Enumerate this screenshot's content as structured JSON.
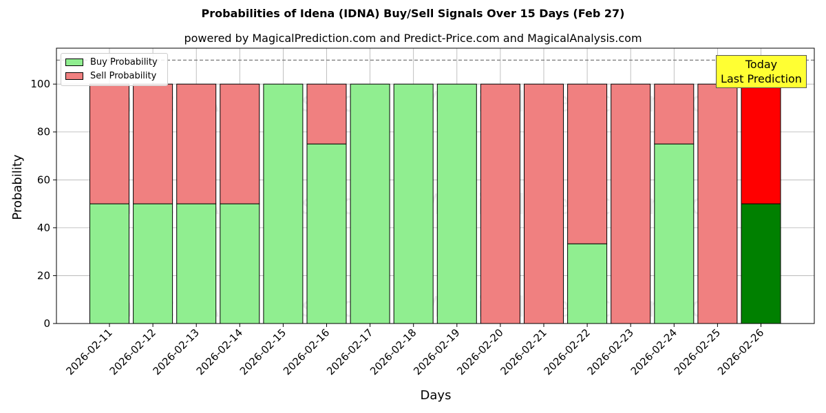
{
  "chart_data": {
    "type": "bar",
    "stacked": true,
    "title": "Probabilities of Idena (IDNA) Buy/Sell Signals Over 15 Days (Feb 27)",
    "subtitle": "powered by MagicalPrediction.com and Predict-Price.com and MagicalAnalysis.com",
    "xlabel": "Days",
    "ylabel": "Probability",
    "ylim": [
      0,
      115
    ],
    "yticks": [
      0,
      20,
      40,
      60,
      80,
      100
    ],
    "reference_line": 110,
    "grid": true,
    "legend_position": "top-left",
    "categories": [
      "2026-02-11",
      "2026-02-12",
      "2026-02-13",
      "2026-02-14",
      "2026-02-15",
      "2026-02-16",
      "2026-02-17",
      "2026-02-18",
      "2026-02-19",
      "2026-02-20",
      "2026-02-21",
      "2026-02-22",
      "2026-02-23",
      "2026-02-24",
      "2026-02-25",
      "2026-02-26"
    ],
    "series": [
      {
        "name": "Buy Probability",
        "color": "#90ee90",
        "values": [
          50,
          50,
          50,
          50,
          100,
          75,
          100,
          100,
          100,
          0,
          0,
          33.3,
          0,
          75,
          0,
          50
        ]
      },
      {
        "name": "Sell Probability",
        "color": "#f08080",
        "values": [
          50,
          50,
          50,
          50,
          0,
          25,
          0,
          0,
          0,
          100,
          100,
          66.7,
          100,
          25,
          100,
          50
        ]
      }
    ],
    "highlight": {
      "index": 15,
      "buy_color": "#008000",
      "sell_color": "#ff0000"
    },
    "annotation": {
      "line1": "Today",
      "line2": "Last Prediction"
    },
    "watermarks": [
      "MagicalAnalysis.com",
      "MagicalPrediction.com"
    ]
  }
}
